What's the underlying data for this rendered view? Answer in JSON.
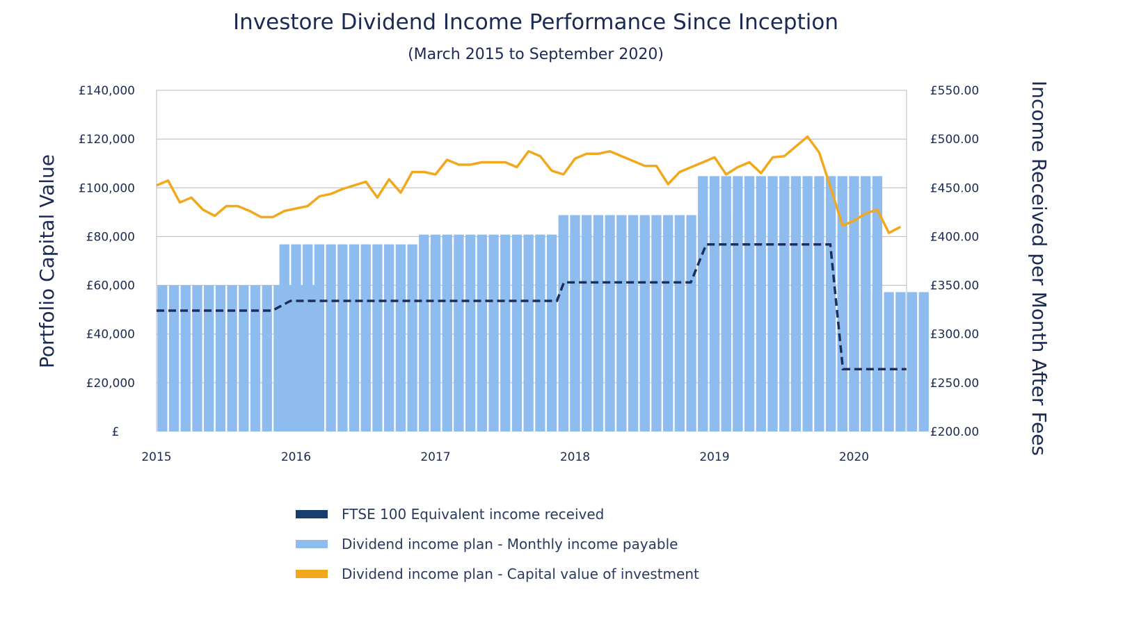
{
  "chart_data": {
    "type": "bar",
    "title": "Investore  Dividend Income Performance Since Inception",
    "subtitle": "(March 2015 to September 2020)",
    "ylabel": "Portfolio Capital Value",
    "y2label": "Income  Received per Month After Fees",
    "x_ticks": [
      "2015",
      "2016",
      "2017",
      "2018",
      "2019",
      "2020"
    ],
    "x_range": [
      2015.0,
      2020.375
    ],
    "y_ticks": [
      "£",
      "£20,000",
      "£40,000",
      "£60,000",
      "£80,000",
      "£100,000",
      "£120,000",
      "£140,000"
    ],
    "ylim": [
      0,
      140000
    ],
    "y2_ticks": [
      "£200.00",
      "£250.00",
      "£300.00",
      "£350.00",
      "£400.00",
      "£450.00",
      "£500.00",
      "£550.00"
    ],
    "y2lim": [
      200,
      550
    ],
    "grid": true,
    "legend_position": "bottom",
    "series": [
      {
        "name": "Dividend income plan - Monthly income payable",
        "type": "bar",
        "axis": "right",
        "color": "#8fbcef",
        "segments": [
          {
            "from": 2015.0,
            "count": 14,
            "value": 350
          },
          {
            "from": 2015.875,
            "count": 16,
            "value": 392
          },
          {
            "from": 2016.875,
            "count": 16,
            "value": 402
          },
          {
            "from": 2017.875,
            "count": 16,
            "value": 422
          },
          {
            "from": 2018.875,
            "count": 16,
            "value": 462
          },
          {
            "from": 2019.875,
            "count": 8,
            "value": 343
          }
        ]
      },
      {
        "name": "FTSE 100 Equivalent income received",
        "type": "line",
        "style": "dashed",
        "axis": "right",
        "color": "#1b2f5a",
        "x": [
          2015.0,
          2015.83,
          2015.96,
          2017.87,
          2017.92,
          2018.83,
          2018.94,
          2019.83,
          2019.92,
          2020.375
        ],
        "y": [
          324,
          324,
          334,
          334,
          353,
          353,
          392,
          392,
          264,
          264
        ]
      },
      {
        "name": "Dividend income plan - Capital value of investment",
        "type": "line",
        "axis": "left",
        "color": "#f2a81d",
        "x": [
          2015.0,
          2015.083,
          2015.167,
          2015.25,
          2015.333,
          2015.417,
          2015.5,
          2015.583,
          2015.667,
          2015.75,
          2015.833,
          2015.917,
          2016.0,
          2016.083,
          2016.167,
          2016.25,
          2016.333,
          2016.417,
          2016.5,
          2016.583,
          2016.667,
          2016.75,
          2016.833,
          2016.917,
          2017.0,
          2017.083,
          2017.167,
          2017.25,
          2017.333,
          2017.417,
          2017.5,
          2017.583,
          2017.667,
          2017.75,
          2017.833,
          2017.917,
          2018.0,
          2018.083,
          2018.167,
          2018.25,
          2018.333,
          2018.417,
          2018.5,
          2018.583,
          2018.667,
          2018.75,
          2018.833,
          2018.917,
          2019.0,
          2019.083,
          2019.167,
          2019.25,
          2019.333,
          2019.417,
          2019.5,
          2019.583,
          2019.667,
          2019.75,
          2019.833,
          2019.917,
          2020.0,
          2020.083,
          2020.167,
          2020.25,
          2020.333
        ],
        "y": [
          101000,
          103000,
          94000,
          96000,
          91000,
          88500,
          92500,
          92500,
          90500,
          88000,
          88000,
          90500,
          91500,
          92500,
          96500,
          97500,
          99500,
          101000,
          102500,
          96000,
          103500,
          98000,
          106500,
          106500,
          105500,
          111500,
          109500,
          109500,
          110500,
          110500,
          110500,
          108500,
          115000,
          113000,
          107000,
          105500,
          112000,
          114000,
          114000,
          115000,
          113000,
          111000,
          109000,
          109000,
          101500,
          106500,
          108500,
          110500,
          112500,
          105500,
          108500,
          110500,
          106000,
          112500,
          113000,
          117000,
          121000,
          114500,
          100000,
          84500,
          86500,
          89500,
          91000,
          81500,
          84000
        ]
      }
    ]
  }
}
